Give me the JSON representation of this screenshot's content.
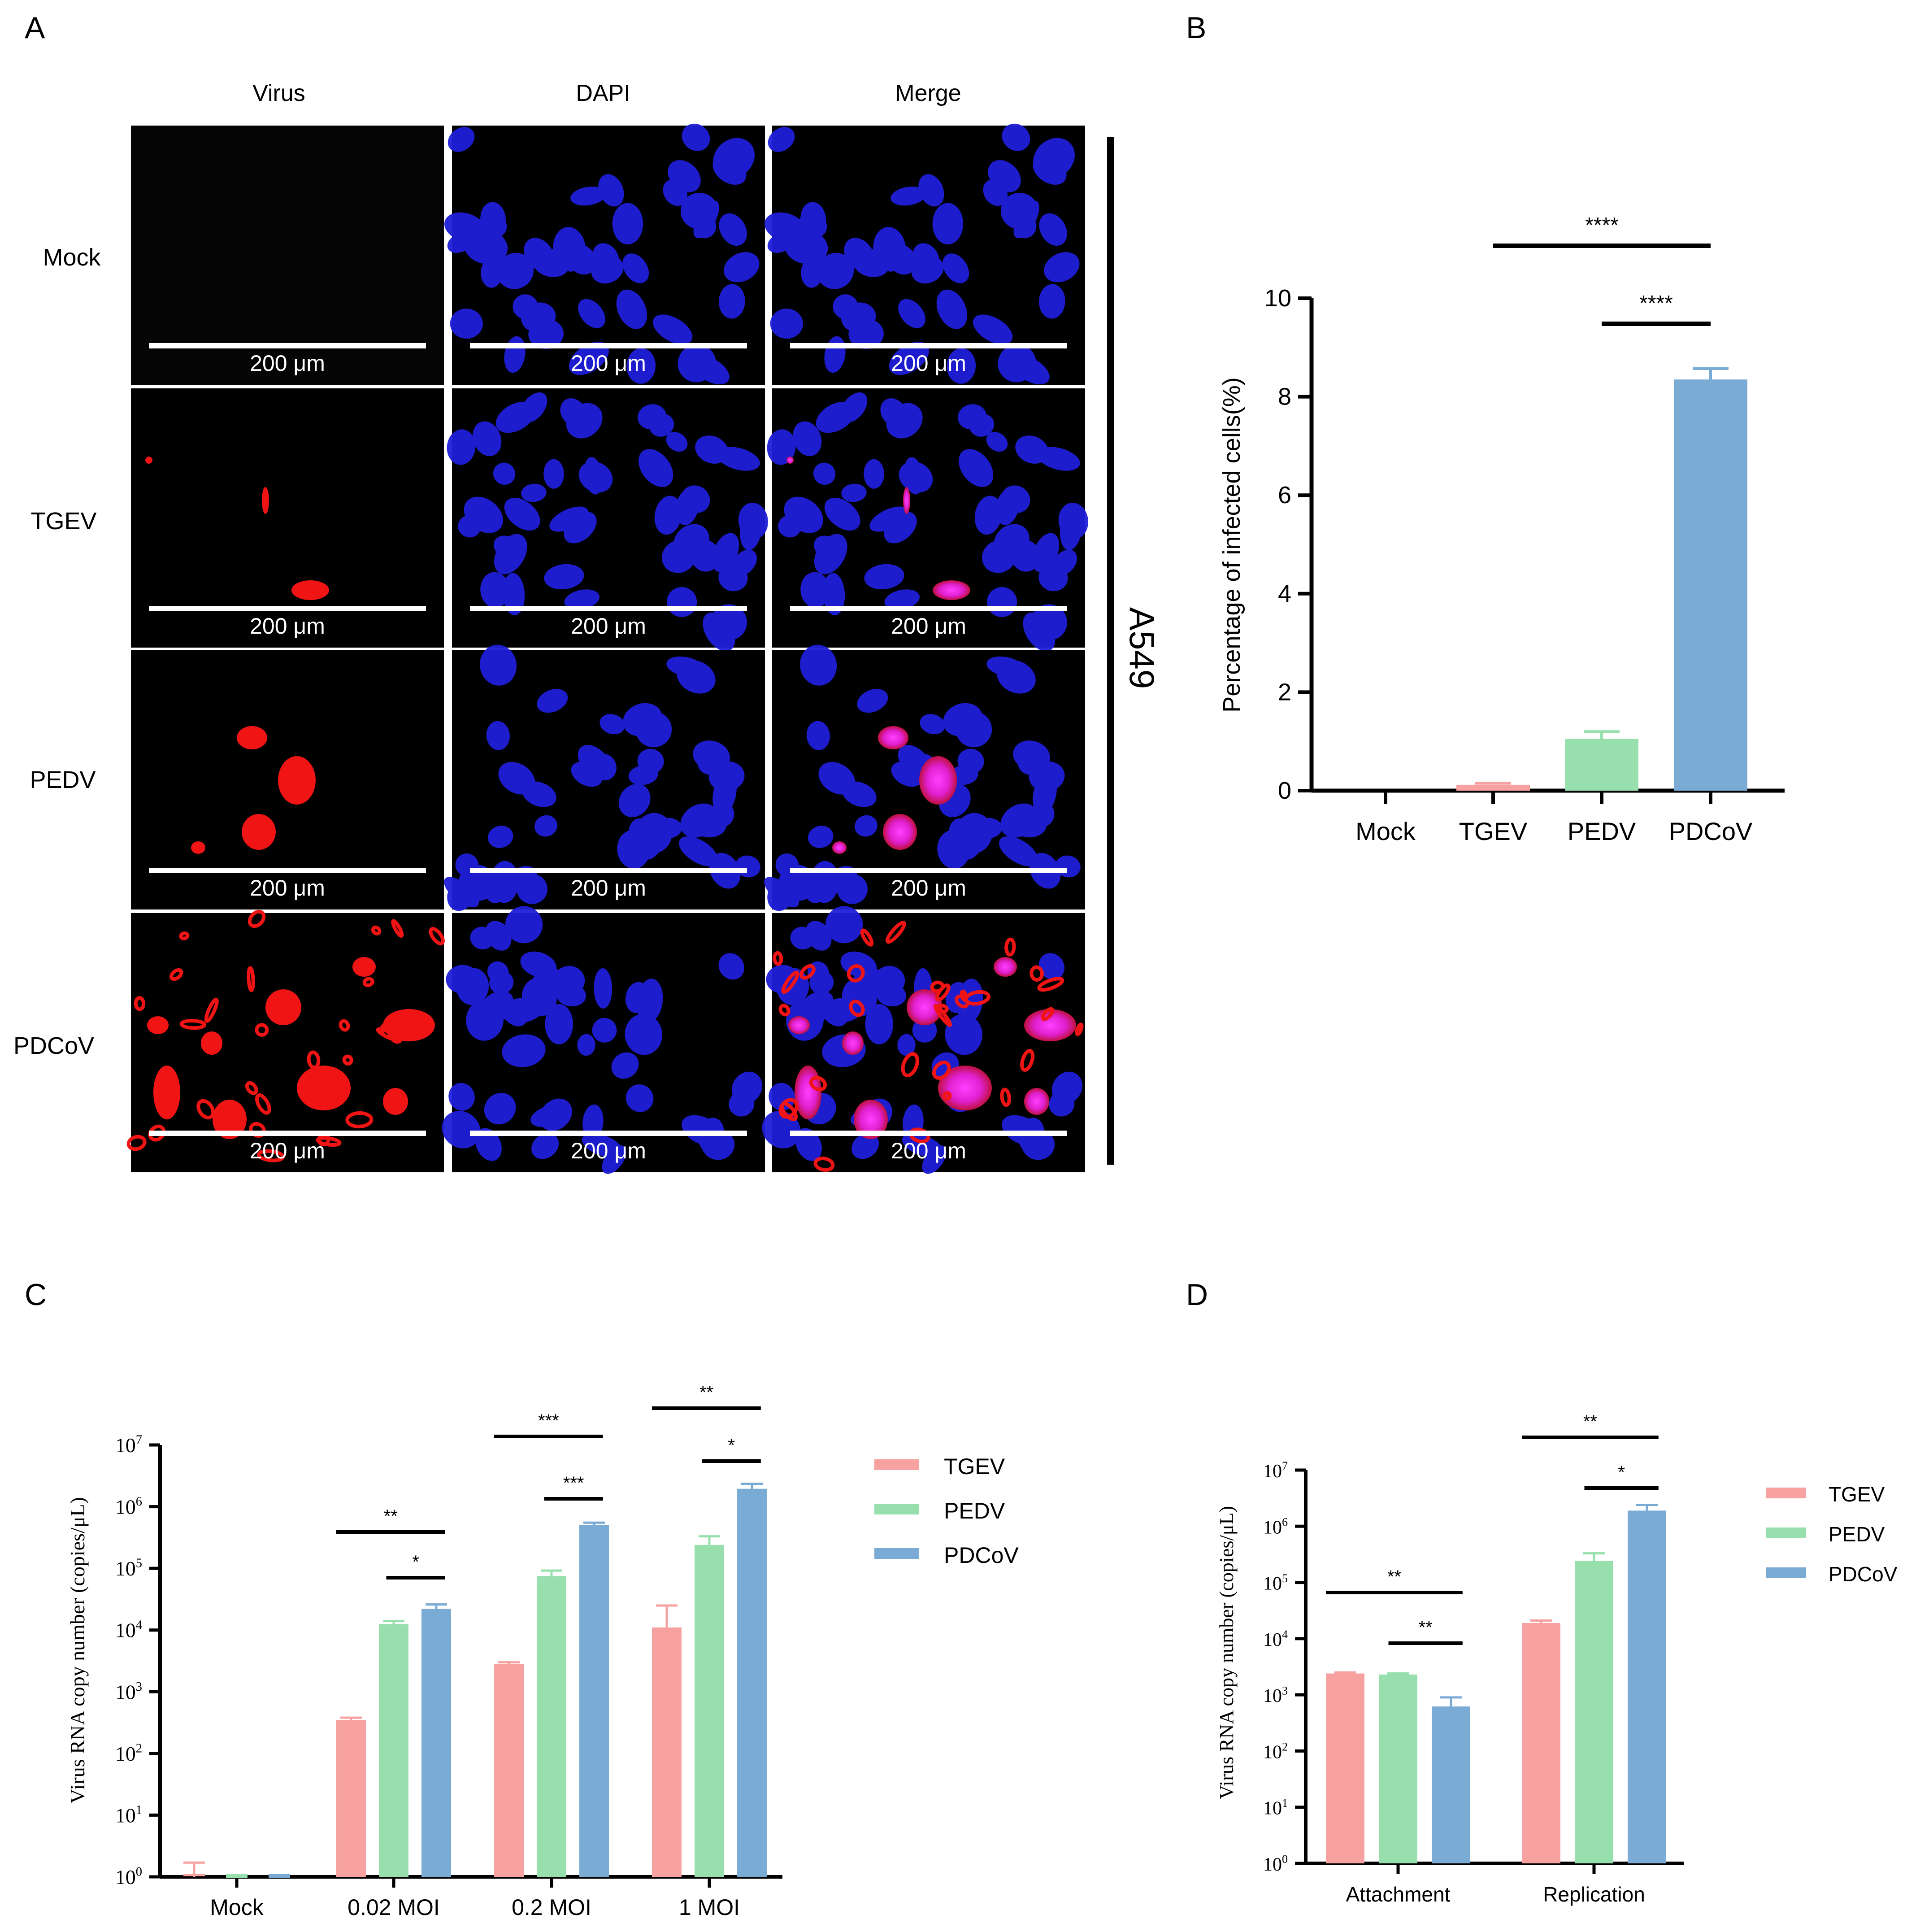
{
  "panel_labels": [
    "A",
    "B",
    "C",
    "D"
  ],
  "colors": {
    "TGEV": "#f7a1a1",
    "PEDV": "#98dfae",
    "PDCoV": "#7aabd5",
    "nucleus": "#1f1fd8",
    "virus": "#f01414"
  },
  "panel_a": {
    "columns": [
      "Virus",
      "DAPI",
      "Merge"
    ],
    "rows": [
      "Mock",
      "TGEV",
      "PEDV",
      "PDCoV"
    ],
    "scale_bar": "200 μm",
    "cell_line": "A549"
  },
  "chart_data": [
    {
      "panel": "B",
      "type": "bar",
      "categories": [
        "Mock",
        "TGEV",
        "PEDV",
        "PDCoV"
      ],
      "values": [
        0,
        0.12,
        1.05,
        8.35
      ],
      "errors": [
        0,
        0.03,
        0.15,
        0.22
      ],
      "ylabel": "Percentage of infected cells(%)",
      "ylim": [
        0,
        10
      ],
      "yticks": [
        "0",
        "2",
        "4",
        "6",
        "8",
        "10"
      ],
      "significance": [
        {
          "from": "TGEV",
          "to": "PDCoV",
          "label": "****"
        },
        {
          "from": "PEDV",
          "to": "PDCoV",
          "label": "****"
        }
      ]
    },
    {
      "panel": "C",
      "type": "bar",
      "yscale": "log",
      "categories": [
        "Mock",
        "0.02 MOI",
        "0.2 MOI",
        "1 MOI"
      ],
      "series": [
        {
          "name": "TGEV",
          "values": [
            1,
            350,
            2800,
            11000
          ],
          "upper": [
            1.7,
            380,
            3000,
            25000
          ]
        },
        {
          "name": "PEDV",
          "values": [
            1,
            12500,
            75000,
            240000
          ],
          "upper": [
            1,
            14000,
            92000,
            330000
          ]
        },
        {
          "name": "PDCoV",
          "values": [
            1,
            22000,
            500000,
            1950000
          ],
          "upper": [
            1,
            26000,
            550000,
            2350000
          ]
        }
      ],
      "ylabel": "Virus RNA copy number (copies/μL)",
      "ylim": [
        1,
        10000000
      ],
      "significance": [
        {
          "group": "0.02 MOI",
          "from": "TGEV",
          "to": "PDCoV",
          "label": "**"
        },
        {
          "group": "0.02 MOI",
          "from": "PEDV",
          "to": "PDCoV",
          "label": "*"
        },
        {
          "group": "0.2 MOI",
          "from": "TGEV",
          "to": "PDCoV",
          "label": "***"
        },
        {
          "group": "0.2 MOI",
          "from": "PEDV",
          "to": "PDCoV",
          "label": "***"
        },
        {
          "group": "1 MOI",
          "from": "TGEV",
          "to": "PDCoV",
          "label": "**"
        },
        {
          "group": "1 MOI",
          "from": "PEDV",
          "to": "PDCoV",
          "label": "*"
        }
      ]
    },
    {
      "panel": "D",
      "type": "bar",
      "yscale": "log",
      "categories": [
        "Attachment",
        "Replication"
      ],
      "series": [
        {
          "name": "TGEV",
          "values": [
            2400,
            19000
          ],
          "upper": [
            2500,
            21000
          ]
        },
        {
          "name": "PEDV",
          "values": [
            2300,
            240000
          ],
          "upper": [
            2400,
            330000
          ]
        },
        {
          "name": "PDCoV",
          "values": [
            620,
            1900000
          ],
          "upper": [
            900,
            2400000
          ]
        }
      ],
      "ylabel": "Virus RNA copy number (copies/μL)",
      "ylim": [
        1,
        10000000
      ],
      "significance": [
        {
          "group": "Attachment",
          "from": "TGEV",
          "to": "PDCoV",
          "label": "**"
        },
        {
          "group": "Attachment",
          "from": "PEDV",
          "to": "PDCoV",
          "label": "**"
        },
        {
          "group": "Replication",
          "from": "TGEV",
          "to": "PDCoV",
          "label": "**"
        },
        {
          "group": "Replication",
          "from": "PEDV",
          "to": "PDCoV",
          "label": "*"
        }
      ]
    }
  ]
}
